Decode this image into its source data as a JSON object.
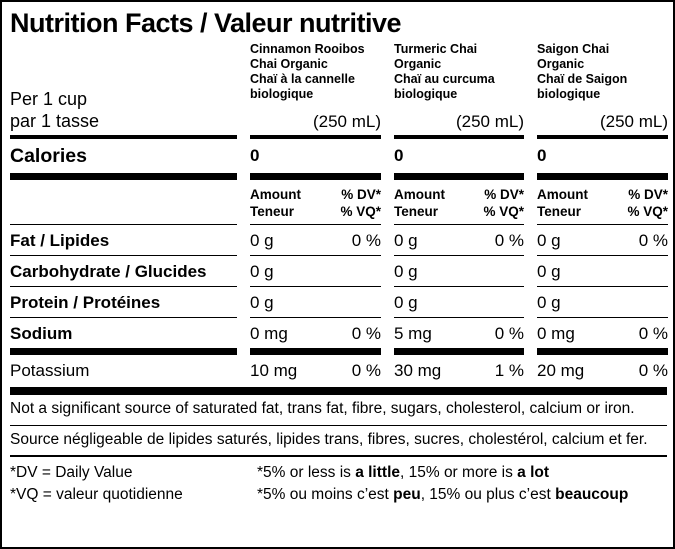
{
  "title": "Nutrition Facts / Valeur nutritive",
  "serving": {
    "en": "Per 1 cup",
    "fr": "par 1 tasse"
  },
  "products": [
    {
      "name_en": "Cinnamon Rooibos Chai Organic",
      "name_fr": "Chaï à la cannelle biologique",
      "size": "(250 mL)",
      "calories": "0"
    },
    {
      "name_en": "Turmeric Chai Organic",
      "name_fr": "Chaï au curcuma biologique",
      "size": "(250 mL)",
      "calories": "0"
    },
    {
      "name_en": "Saigon Chai Organic",
      "name_fr": "Chaï de Saigon biologique",
      "size": "(250 mL)",
      "calories": "0"
    }
  ],
  "calories_label": "Calories",
  "column_header": {
    "amount_en": "Amount",
    "dv_en": "% DV*",
    "amount_fr": "Teneur",
    "dv_fr": "% VQ*"
  },
  "nutrients": [
    {
      "label": "Fat / Lipides",
      "values": [
        {
          "amount": "0 g",
          "dv": "0 %"
        },
        {
          "amount": "0 g",
          "dv": "0 %"
        },
        {
          "amount": "0 g",
          "dv": "0 %"
        }
      ]
    },
    {
      "label": "Carbohydrate / Glucides",
      "values": [
        {
          "amount": "0 g",
          "dv": ""
        },
        {
          "amount": "0 g",
          "dv": ""
        },
        {
          "amount": "0 g",
          "dv": ""
        }
      ]
    },
    {
      "label": "Protein / Protéines",
      "values": [
        {
          "amount": "0 g",
          "dv": ""
        },
        {
          "amount": "0 g",
          "dv": ""
        },
        {
          "amount": "0 g",
          "dv": ""
        }
      ]
    },
    {
      "label": "Sodium",
      "values": [
        {
          "amount": "0 mg",
          "dv": "0 %"
        },
        {
          "amount": "5 mg",
          "dv": "0 %"
        },
        {
          "amount": "0 mg",
          "dv": "0 %"
        }
      ]
    },
    {
      "label": "Potassium",
      "values": [
        {
          "amount": "10 mg",
          "dv": "0 %"
        },
        {
          "amount": "30 mg",
          "dv": "1 %"
        },
        {
          "amount": "20 mg",
          "dv": "0 %"
        }
      ]
    }
  ],
  "notes": {
    "en": "Not a significant source of saturated fat, trans fat, fibre, sugars, cholesterol, calcium or iron.",
    "fr": "Source négligeable de lipides saturés, lipides trans, fibres, sucres, cholestérol, calcium et fer."
  },
  "footnotes": {
    "dv_def": "*DV = Daily Value",
    "vq_def": "*VQ = valeur quotidienne",
    "en": {
      "p1": "*5% or less is ",
      "b1": "a little",
      "p2": ", 15% or more is ",
      "b2": "a lot"
    },
    "fr": {
      "p1": "*5% ou moins c’est ",
      "b1": "peu",
      "p2": ", 15% ou plus c’est ",
      "b2": "beaucoup"
    }
  }
}
